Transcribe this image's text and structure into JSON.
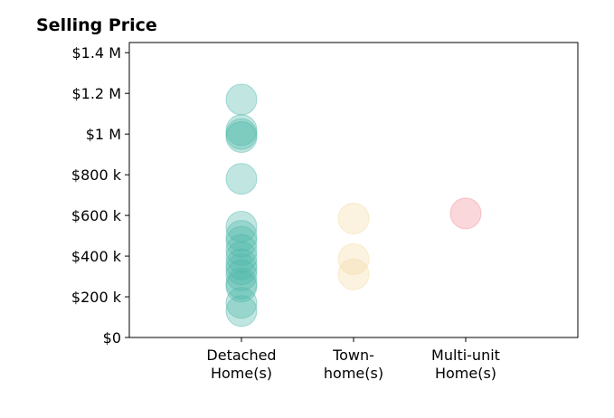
{
  "chart_data": {
    "type": "scatter",
    "title": "Selling Price",
    "xlabel": "",
    "ylabel": "",
    "categories": [
      [
        "Detached",
        "Home(s)"
      ],
      [
        "Town-",
        "home(s)"
      ],
      [
        "Multi-unit",
        "Home(s)"
      ]
    ],
    "xlim": [
      -1,
      3
    ],
    "ylim": [
      0,
      1450000
    ],
    "yticks": [
      0,
      200000,
      400000,
      600000,
      800000,
      1000000,
      1200000,
      1400000
    ],
    "ytick_labels": [
      "$0",
      "$200 k",
      "$400 k",
      "$600 k",
      "$800 k",
      "$1 M",
      "$1.2 M",
      "$1.4 M"
    ],
    "grid": false,
    "legend": "none",
    "marker_opacity": 0.35,
    "series": [
      {
        "category_index": 0,
        "color": "#4db6a8",
        "values": [
          1170000,
          1020000,
          1000000,
          985000,
          780000,
          545000,
          500000,
          470000,
          430000,
          395000,
          360000,
          335000,
          305000,
          265000,
          250000,
          170000,
          130000
        ]
      },
      {
        "category_index": 1,
        "color": "#f3d9a4",
        "values": [
          585000,
          385000,
          310000
        ]
      },
      {
        "category_index": 2,
        "color": "#f28b96",
        "values": [
          610000
        ]
      }
    ]
  }
}
